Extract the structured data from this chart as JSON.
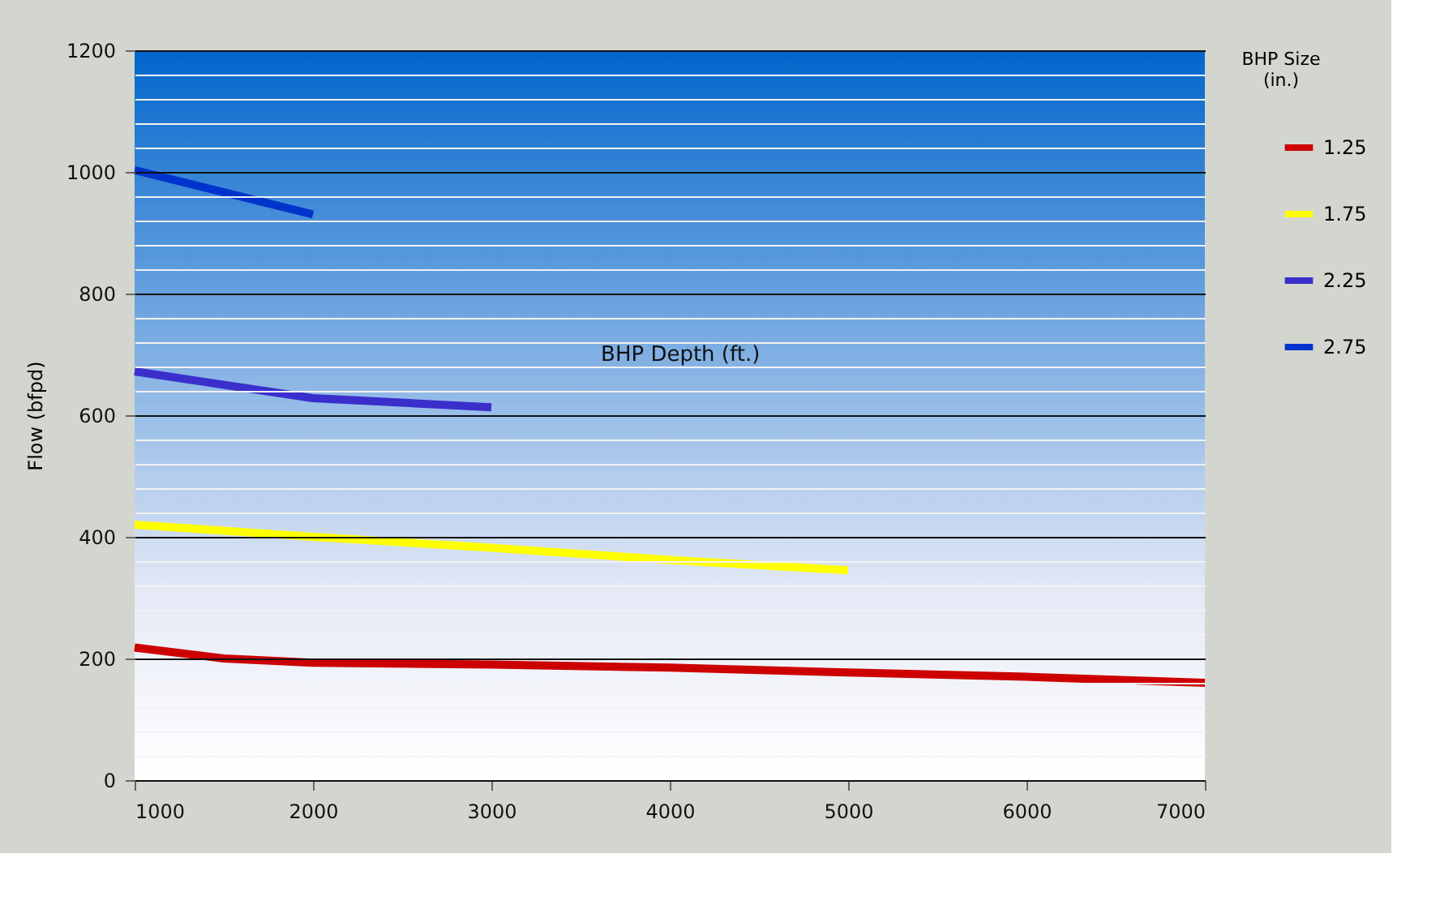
{
  "chart_data": {
    "type": "line",
    "xlabel": "BHP Depth (ft.)",
    "ylabel": "Flow (bfpd)",
    "legend_title": "BHP Size (in.)",
    "legend": "right",
    "grid": "y",
    "line_style": "solid",
    "series": [
      {
        "name": "1.25",
        "color": "#cc0000",
        "x": [
          1000,
          1500,
          2000,
          3000,
          4000,
          5000,
          6000,
          7000
        ],
        "values": [
          218,
          200,
          193,
          190,
          185,
          177,
          170,
          160
        ]
      },
      {
        "name": "1.75",
        "color": "#ffff00",
        "x": [
          1000,
          2000,
          3000,
          4000,
          5000
        ],
        "values": [
          420,
          400,
          382,
          362,
          345
        ]
      },
      {
        "name": "2.25",
        "color": "#3a2fcc",
        "x": [
          1000,
          2000,
          3000
        ],
        "values": [
          672,
          628,
          613
        ]
      },
      {
        "name": "2.75",
        "color": "#0033cc",
        "x": [
          1000,
          2000
        ],
        "values": [
          1003,
          930
        ]
      }
    ],
    "xlim": [
      1000,
      7000
    ],
    "xticks": [
      1000,
      2000,
      3000,
      4000,
      5000,
      6000,
      7000
    ],
    "ylim": [
      0,
      1200
    ],
    "yticks": [
      0,
      {
        "value": 40,
        "label": null
      },
      {
        "value": 80,
        "label": null
      },
      {
        "value": 120,
        "label": null
      },
      {
        "value": 160,
        "label": null
      },
      200,
      {
        "value": 240,
        "label": null
      },
      {
        "value": 280,
        "label": null
      },
      {
        "value": 320,
        "label": null
      },
      {
        "value": 360,
        "label": null
      },
      400,
      {
        "value": 440,
        "label": null
      },
      {
        "value": 480,
        "label": null
      },
      {
        "value": 520,
        "label": null
      },
      {
        "value": 560,
        "label": null
      },
      600,
      {
        "value": 640,
        "label": null
      },
      {
        "value": 680,
        "label": null
      },
      {
        "value": 720,
        "label": null
      },
      {
        "value": 760,
        "label": null
      },
      800,
      {
        "value": 840,
        "label": null
      },
      {
        "value": 880,
        "label": null
      },
      {
        "value": 920,
        "label": null
      },
      {
        "value": 960,
        "label": null
      },
      1000,
      {
        "value": 1040,
        "label": null
      },
      {
        "value": 1080,
        "label": null
      },
      {
        "value": 1120,
        "label": null
      },
      {
        "value": 1160,
        "label": null
      },
      1200
    ]
  }
}
